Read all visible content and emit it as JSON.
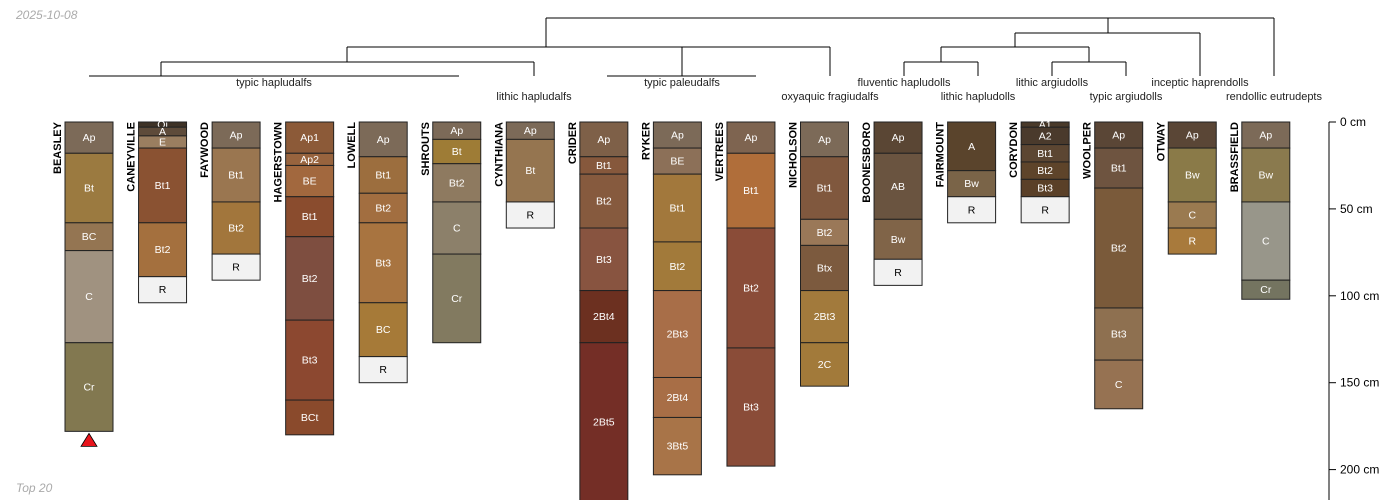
{
  "date_label": "2025-10-08",
  "footer_label": "Top 20",
  "depth_unit": "cm",
  "depth_max": 200,
  "depth_ticks": [
    0,
    50,
    100,
    150,
    200
  ],
  "marker_under_profile": "BEASLEY",
  "groups": [
    {
      "label": "typic hapludalfs",
      "members": [
        "BEASLEY",
        "CANEYVILLE",
        "FAYWOOD",
        "HAGERSTOWN",
        "LOWELL",
        "SHROUTS"
      ]
    },
    {
      "label": "lithic hapludalfs",
      "members": [
        "CYNTHIANA"
      ]
    },
    {
      "label": "typic paleudalfs",
      "members": [
        "CRIDER",
        "RYKER",
        "VERTREES"
      ]
    },
    {
      "label": "oxyaquic fragiudalfs",
      "members": [
        "NICHOLSON"
      ]
    },
    {
      "label": "fluventic hapludolls",
      "members": [
        "BOONESBORO"
      ]
    },
    {
      "label": "lithic hapludolls",
      "members": [
        "FAIRMOUNT"
      ]
    },
    {
      "label": "lithic argiudolls",
      "members": [
        "CORYDON"
      ]
    },
    {
      "label": "typic argiudolls",
      "members": [
        "WOOLPER"
      ]
    },
    {
      "label": "inceptic haprendolls",
      "members": [
        "OTWAY"
      ]
    },
    {
      "label": "rendollic eutrudepts",
      "members": [
        "BRASSFIELD"
      ]
    }
  ],
  "profiles": [
    {
      "name": "BEASLEY",
      "horizons": [
        {
          "name": "Ap",
          "top": 0,
          "bottom": 18,
          "color": "#7c6a58"
        },
        {
          "name": "Bt",
          "top": 18,
          "bottom": 58,
          "color": "#9b7a40"
        },
        {
          "name": "BC",
          "top": 58,
          "bottom": 74,
          "color": "#947552"
        },
        {
          "name": "C",
          "top": 74,
          "bottom": 127,
          "color": "#a09280"
        },
        {
          "name": "Cr",
          "top": 127,
          "bottom": 178,
          "color": "#827850"
        }
      ]
    },
    {
      "name": "CANEYVILLE",
      "horizons": [
        {
          "name": "Oi",
          "top": 0,
          "bottom": 3,
          "color": "#3e3226"
        },
        {
          "name": "A",
          "top": 3,
          "bottom": 8,
          "color": "#5e4b3a"
        },
        {
          "name": "E",
          "top": 8,
          "bottom": 15,
          "color": "#9a7e60"
        },
        {
          "name": "Bt1",
          "top": 15,
          "bottom": 58,
          "color": "#8a5232"
        },
        {
          "name": "Bt2",
          "top": 58,
          "bottom": 89,
          "color": "#a4703e"
        },
        {
          "name": "R",
          "top": 89,
          "bottom": 104,
          "color": "#f2f2f2"
        }
      ]
    },
    {
      "name": "FAYWOOD",
      "horizons": [
        {
          "name": "Ap",
          "top": 0,
          "bottom": 15,
          "color": "#7c6a58"
        },
        {
          "name": "Bt1",
          "top": 15,
          "bottom": 46,
          "color": "#9a7650"
        },
        {
          "name": "Bt2",
          "top": 46,
          "bottom": 76,
          "color": "#a2763c"
        },
        {
          "name": "R",
          "top": 76,
          "bottom": 91,
          "color": "#f2f2f2"
        }
      ]
    },
    {
      "name": "HAGERSTOWN",
      "horizons": [
        {
          "name": "Ap1",
          "top": 0,
          "bottom": 18,
          "color": "#8c5a38"
        },
        {
          "name": "Ap2",
          "top": 18,
          "bottom": 25,
          "color": "#98643e"
        },
        {
          "name": "BE",
          "top": 25,
          "bottom": 43,
          "color": "#a2683e"
        },
        {
          "name": "Bt1",
          "top": 43,
          "bottom": 66,
          "color": "#8a4c2e"
        },
        {
          "name": "Bt2",
          "top": 66,
          "bottom": 114,
          "color": "#7e4e40"
        },
        {
          "name": "Bt3",
          "top": 114,
          "bottom": 160,
          "color": "#8c4830"
        },
        {
          "name": "BCt",
          "top": 160,
          "bottom": 180,
          "color": "#8a4a2c"
        }
      ]
    },
    {
      "name": "LOWELL",
      "horizons": [
        {
          "name": "Ap",
          "top": 0,
          "bottom": 20,
          "color": "#7c6a58"
        },
        {
          "name": "Bt1",
          "top": 20,
          "bottom": 41,
          "color": "#9c6e3e"
        },
        {
          "name": "Bt2",
          "top": 41,
          "bottom": 58,
          "color": "#a26e40"
        },
        {
          "name": "Bt3",
          "top": 58,
          "bottom": 104,
          "color": "#a87440"
        },
        {
          "name": "BC",
          "top": 104,
          "bottom": 135,
          "color": "#a67a38"
        },
        {
          "name": "R",
          "top": 135,
          "bottom": 150,
          "color": "#f2f2f2"
        }
      ]
    },
    {
      "name": "SHROUTS",
      "horizons": [
        {
          "name": "Ap",
          "top": 0,
          "bottom": 10,
          "color": "#7c6a58"
        },
        {
          "name": "Bt",
          "top": 10,
          "bottom": 24,
          "color": "#9e7c36"
        },
        {
          "name": "Bt2",
          "top": 24,
          "bottom": 46,
          "color": "#8e7a60"
        },
        {
          "name": "C",
          "top": 46,
          "bottom": 76,
          "color": "#8c806a"
        },
        {
          "name": "Cr",
          "top": 76,
          "bottom": 127,
          "color": "#827a60"
        }
      ]
    },
    {
      "name": "CYNTHIANA",
      "horizons": [
        {
          "name": "Ap",
          "top": 0,
          "bottom": 10,
          "color": "#7c6a58"
        },
        {
          "name": "Bt",
          "top": 10,
          "bottom": 46,
          "color": "#957550"
        },
        {
          "name": "R",
          "top": 46,
          "bottom": 61,
          "color": "#f2f2f2"
        }
      ]
    },
    {
      "name": "CRIDER",
      "horizons": [
        {
          "name": "Ap",
          "top": 0,
          "bottom": 20,
          "color": "#7e6048"
        },
        {
          "name": "Bt1",
          "top": 20,
          "bottom": 30,
          "color": "#86583c"
        },
        {
          "name": "Bt2",
          "top": 30,
          "bottom": 61,
          "color": "#865a3e"
        },
        {
          "name": "Bt3",
          "top": 61,
          "bottom": 97,
          "color": "#885440"
        },
        {
          "name": "2Bt4",
          "top": 97,
          "bottom": 127,
          "color": "#6c3020"
        },
        {
          "name": "2Bt5",
          "top": 127,
          "bottom": 218,
          "color": "#742e26"
        }
      ]
    },
    {
      "name": "RYKER",
      "horizons": [
        {
          "name": "Ap",
          "top": 0,
          "bottom": 15,
          "color": "#7c6a58"
        },
        {
          "name": "BE",
          "top": 15,
          "bottom": 30,
          "color": "#8c7058"
        },
        {
          "name": "Bt1",
          "top": 30,
          "bottom": 69,
          "color": "#a2783c"
        },
        {
          "name": "Bt2",
          "top": 69,
          "bottom": 97,
          "color": "#a27a3a"
        },
        {
          "name": "2Bt3",
          "top": 97,
          "bottom": 147,
          "color": "#a86e48"
        },
        {
          "name": "2Bt4",
          "top": 147,
          "bottom": 170,
          "color": "#a86e46"
        },
        {
          "name": "3Bt5",
          "top": 170,
          "bottom": 203,
          "color": "#a87448"
        }
      ]
    },
    {
      "name": "VERTREES",
      "horizons": [
        {
          "name": "Ap",
          "top": 0,
          "bottom": 18,
          "color": "#7e6450"
        },
        {
          "name": "Bt1",
          "top": 18,
          "bottom": 61,
          "color": "#b06e3a"
        },
        {
          "name": "Bt2",
          "top": 61,
          "bottom": 130,
          "color": "#8a4c38"
        },
        {
          "name": "Bt3",
          "top": 130,
          "bottom": 198,
          "color": "#8a4c38"
        }
      ]
    },
    {
      "name": "NICHOLSON",
      "horizons": [
        {
          "name": "Ap",
          "top": 0,
          "bottom": 20,
          "color": "#7c6a58"
        },
        {
          "name": "Bt1",
          "top": 20,
          "bottom": 56,
          "color": "#80583e"
        },
        {
          "name": "Bt2",
          "top": 56,
          "bottom": 71,
          "color": "#9a7858"
        },
        {
          "name": "Btx",
          "top": 71,
          "bottom": 97,
          "color": "#7c5a3e"
        },
        {
          "name": "2Bt3",
          "top": 97,
          "bottom": 127,
          "color": "#a27a3c"
        },
        {
          "name": "2C",
          "top": 127,
          "bottom": 152,
          "color": "#a27a3a"
        }
      ]
    },
    {
      "name": "BOONESBORO",
      "horizons": [
        {
          "name": "Ap",
          "top": 0,
          "bottom": 18,
          "color": "#5a4634"
        },
        {
          "name": "AB",
          "top": 18,
          "bottom": 56,
          "color": "#6a5440"
        },
        {
          "name": "Bw",
          "top": 56,
          "bottom": 79,
          "color": "#806448"
        },
        {
          "name": "R",
          "top": 79,
          "bottom": 94,
          "color": "#f2f2f2"
        }
      ]
    },
    {
      "name": "FAIRMOUNT",
      "horizons": [
        {
          "name": "A",
          "top": 0,
          "bottom": 28,
          "color": "#5a442c"
        },
        {
          "name": "Bw",
          "top": 28,
          "bottom": 43,
          "color": "#7a6448"
        },
        {
          "name": "R",
          "top": 43,
          "bottom": 58,
          "color": "#f2f2f2"
        }
      ]
    },
    {
      "name": "CORYDON",
      "horizons": [
        {
          "name": "A1",
          "top": 0,
          "bottom": 3,
          "color": "#4a3a2a"
        },
        {
          "name": "A2",
          "top": 3,
          "bottom": 13,
          "color": "#4a3a2c"
        },
        {
          "name": "Bt1",
          "top": 13,
          "bottom": 23,
          "color": "#5c4632"
        },
        {
          "name": "Bt2",
          "top": 23,
          "bottom": 33,
          "color": "#5e442a"
        },
        {
          "name": "Bt3",
          "top": 33,
          "bottom": 43,
          "color": "#5a4028"
        },
        {
          "name": "R",
          "top": 43,
          "bottom": 58,
          "color": "#f2f2f2"
        }
      ]
    },
    {
      "name": "WOOLPER",
      "horizons": [
        {
          "name": "Ap",
          "top": 0,
          "bottom": 15,
          "color": "#5a4636"
        },
        {
          "name": "Bt1",
          "top": 15,
          "bottom": 38,
          "color": "#6e5440"
        },
        {
          "name": "Bt2",
          "top": 38,
          "bottom": 107,
          "color": "#7a5a3a"
        },
        {
          "name": "Bt3",
          "top": 107,
          "bottom": 137,
          "color": "#8e7050"
        },
        {
          "name": "C",
          "top": 137,
          "bottom": 165,
          "color": "#967252"
        }
      ]
    },
    {
      "name": "OTWAY",
      "horizons": [
        {
          "name": "Ap",
          "top": 0,
          "bottom": 15,
          "color": "#5a4636"
        },
        {
          "name": "Bw",
          "top": 15,
          "bottom": 46,
          "color": "#8a7a48"
        },
        {
          "name": "C",
          "top": 46,
          "bottom": 61,
          "color": "#9a7a50"
        },
        {
          "name": "R",
          "top": 61,
          "bottom": 76,
          "color": "#a87a3c"
        }
      ]
    },
    {
      "name": "BRASSFIELD",
      "horizons": [
        {
          "name": "Ap",
          "top": 0,
          "bottom": 15,
          "color": "#7c6a58"
        },
        {
          "name": "Bw",
          "top": 15,
          "bottom": 46,
          "color": "#8a7a4e"
        },
        {
          "name": "C",
          "top": 46,
          "bottom": 91,
          "color": "#98968a"
        },
        {
          "name": "Cr",
          "top": 91,
          "bottom": 102,
          "color": "#747460"
        }
      ]
    }
  ]
}
